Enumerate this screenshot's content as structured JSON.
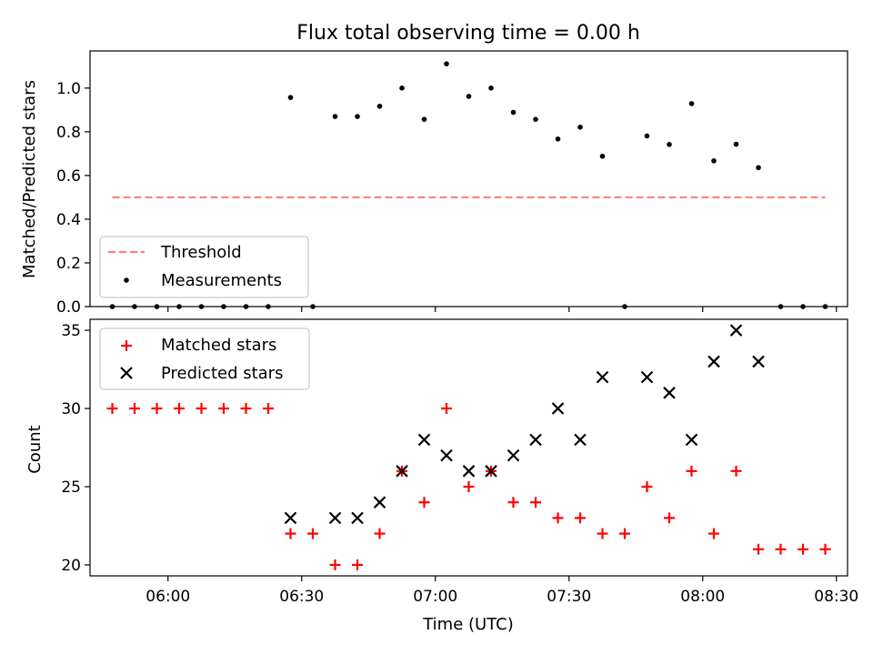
{
  "chart_data": [
    {
      "type": "scatter",
      "title": "Flux total observing time = 0.00 h",
      "xlabel": "",
      "ylabel": "Matched/Predicted stars",
      "ylim": [
        0,
        1.17
      ],
      "yticks": [
        0.0,
        0.2,
        0.4,
        0.6,
        0.8,
        1.0
      ],
      "ytick_labels": [
        "0.0",
        "0.2",
        "0.4",
        "0.6",
        "0.8",
        "1.0"
      ],
      "x_unit": "minutes since 00:00 UTC",
      "legend_placement": "lower-left",
      "threshold": {
        "name": "Threshold",
        "value": 0.5,
        "x_start": 347.5,
        "x_end": 507.5,
        "color": "#ff7f7f"
      },
      "series": [
        {
          "name": "Measurements",
          "color": "#000000",
          "marker": "dot",
          "points": [
            [
              347.5,
              0.0
            ],
            [
              352.5,
              0.0
            ],
            [
              357.5,
              0.0
            ],
            [
              362.5,
              0.0
            ],
            [
              367.5,
              0.0
            ],
            [
              372.5,
              0.0
            ],
            [
              377.5,
              0.0
            ],
            [
              382.5,
              0.0
            ],
            [
              387.5,
              0.957
            ],
            [
              392.5,
              0.0
            ],
            [
              397.5,
              0.87
            ],
            [
              402.5,
              0.87
            ],
            [
              407.5,
              0.917
            ],
            [
              412.5,
              1.0
            ],
            [
              417.5,
              0.857
            ],
            [
              422.5,
              1.111
            ],
            [
              427.5,
              0.962
            ],
            [
              432.5,
              1.0
            ],
            [
              437.5,
              0.889
            ],
            [
              442.5,
              0.857
            ],
            [
              447.5,
              0.767
            ],
            [
              452.5,
              0.821
            ],
            [
              457.5,
              0.688
            ],
            [
              462.5,
              0.0
            ],
            [
              467.5,
              0.781
            ],
            [
              472.5,
              0.742
            ],
            [
              477.5,
              0.929
            ],
            [
              482.5,
              0.667
            ],
            [
              487.5,
              0.743
            ],
            [
              492.5,
              0.636
            ],
            [
              497.5,
              0.0
            ],
            [
              502.5,
              0.0
            ],
            [
              507.5,
              0.0
            ]
          ]
        }
      ]
    },
    {
      "type": "scatter",
      "title": "",
      "xlabel": "Time (UTC)",
      "ylabel": "Count",
      "ylim": [
        19.3,
        35.7
      ],
      "yticks": [
        20,
        25,
        30,
        35
      ],
      "ytick_labels": [
        "20",
        "25",
        "30",
        "35"
      ],
      "xlim": [
        342.5,
        512.5
      ],
      "xticks": [
        360,
        390,
        420,
        450,
        480,
        510
      ],
      "xtick_labels": [
        "06:00",
        "06:30",
        "07:00",
        "07:30",
        "08:00",
        "08:30"
      ],
      "x_unit": "minutes since 00:00 UTC",
      "legend_placement": "upper-left",
      "series": [
        {
          "name": "Matched stars",
          "color": "#ff0000",
          "marker": "plus",
          "points": [
            [
              347.5,
              30
            ],
            [
              352.5,
              30
            ],
            [
              357.5,
              30
            ],
            [
              362.5,
              30
            ],
            [
              367.5,
              30
            ],
            [
              372.5,
              30
            ],
            [
              377.5,
              30
            ],
            [
              382.5,
              30
            ],
            [
              387.5,
              22
            ],
            [
              392.5,
              22
            ],
            [
              397.5,
              20
            ],
            [
              402.5,
              20
            ],
            [
              407.5,
              22
            ],
            [
              412.5,
              26
            ],
            [
              417.5,
              24
            ],
            [
              422.5,
              30
            ],
            [
              427.5,
              25
            ],
            [
              432.5,
              26
            ],
            [
              437.5,
              24
            ],
            [
              442.5,
              24
            ],
            [
              447.5,
              23
            ],
            [
              452.5,
              23
            ],
            [
              457.5,
              22
            ],
            [
              462.5,
              22
            ],
            [
              467.5,
              25
            ],
            [
              472.5,
              23
            ],
            [
              477.5,
              26
            ],
            [
              482.5,
              22
            ],
            [
              487.5,
              26
            ],
            [
              492.5,
              21
            ],
            [
              497.5,
              21
            ],
            [
              502.5,
              21
            ],
            [
              507.5,
              21
            ]
          ]
        },
        {
          "name": "Predicted stars",
          "color": "#000000",
          "marker": "x",
          "points": [
            [
              387.5,
              23
            ],
            [
              397.5,
              23
            ],
            [
              402.5,
              23
            ],
            [
              407.5,
              24
            ],
            [
              412.5,
              26
            ],
            [
              417.5,
              28
            ],
            [
              422.5,
              27
            ],
            [
              427.5,
              26
            ],
            [
              432.5,
              26
            ],
            [
              437.5,
              27
            ],
            [
              442.5,
              28
            ],
            [
              447.5,
              30
            ],
            [
              452.5,
              28
            ],
            [
              457.5,
              32
            ],
            [
              467.5,
              32
            ],
            [
              472.5,
              31
            ],
            [
              477.5,
              28
            ],
            [
              482.5,
              33
            ],
            [
              487.5,
              35
            ],
            [
              492.5,
              33
            ]
          ]
        }
      ]
    }
  ]
}
